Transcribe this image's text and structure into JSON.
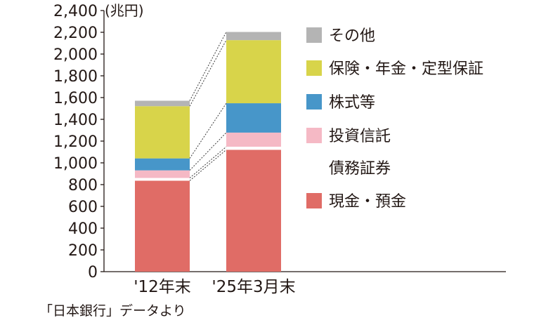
{
  "chart_data": {
    "type": "bar",
    "stacked": true,
    "unit": "(兆円)",
    "categories": [
      "'12年末",
      "'25年3月末"
    ],
    "ylim": [
      0,
      2400
    ],
    "yticks": [
      "0",
      "200",
      "400",
      "600",
      "800",
      "1,000",
      "1,200",
      "1,400",
      "1,600",
      "1,800",
      "2,000",
      "2,200",
      "2,400"
    ],
    "series": [
      {
        "name": "現金・預金",
        "color": "#e06c66",
        "values": [
          836,
          1120
        ]
      },
      {
        "name": "債務証券",
        "color": "#ffffff",
        "values": [
          25,
          28
        ]
      },
      {
        "name": "投資信託",
        "color": "#f5b9c5",
        "values": [
          70,
          130
        ]
      },
      {
        "name": "株式等",
        "color": "#4796c9",
        "values": [
          110,
          270
        ]
      },
      {
        "name": "保険・年金・定型保証",
        "color": "#d8d44a",
        "values": [
          480,
          580
        ]
      },
      {
        "name": "その他",
        "color": "#b4b4b4",
        "values": [
          50,
          75
        ]
      }
    ],
    "legend_order": [
      "その他",
      "保険・年金・定型保証",
      "株式等",
      "投資信託",
      "債務証券",
      "現金・預金"
    ],
    "legend_placement": "right",
    "grid": false,
    "connector_lines": "dotted"
  },
  "source_note": "「日本銀行」データより"
}
